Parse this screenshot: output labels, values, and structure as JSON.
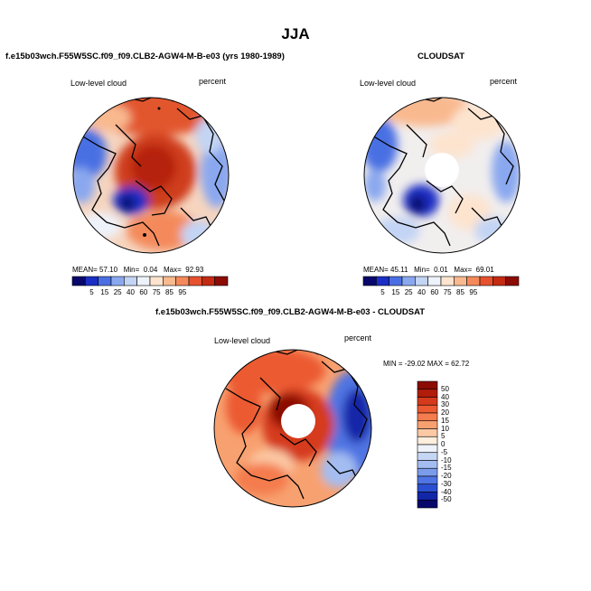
{
  "figure": {
    "season_title": "JJA"
  },
  "panel_model": {
    "title": "f.e15b03wch.F55W5SC.f09_f09.CLB2-AGW4-M-B-e03 (yrs 1980-1989)",
    "variable": "Low-level cloud",
    "units": "percent",
    "stats": {
      "mean_label": "MEAN=",
      "mean_value": "57.10",
      "min_label": "Min=",
      "min_value": "0.04",
      "max_label": "Max=",
      "max_value": "92.93"
    }
  },
  "panel_obs": {
    "title": "CLOUDSAT",
    "variable": "Low-level cloud",
    "units": "percent",
    "stats": {
      "mean_label": "MEAN=",
      "mean_value": "45.11",
      "min_label": "Min=",
      "min_value": "0.01",
      "max_label": "Max=",
      "max_value": "69.01"
    }
  },
  "panel_diff": {
    "title": "f.e15b03wch.F55W5SC.f09_f09.CLB2-AGW4-M-B-e03 - CLOUDSAT",
    "variable": "Low-level cloud",
    "units": "percent",
    "minmax_text": "MIN = -29.02 MAX =  62.72"
  },
  "colorbar_abs": {
    "labels": [
      "5",
      "15",
      "25",
      "40",
      "60",
      "75",
      "85",
      "95"
    ],
    "colors": [
      "#08076b",
      "#1b2fc4",
      "#4a6fe3",
      "#8aa8ef",
      "#c3d4f4",
      "#eef2fa",
      "#fde4cf",
      "#f9b98f",
      "#f48a5c",
      "#e6522e",
      "#c42b12",
      "#8c0b03"
    ]
  },
  "colorbar_diff": {
    "labels": [
      "50",
      "40",
      "30",
      "20",
      "15",
      "10",
      "5",
      "0",
      "-5",
      "-10",
      "-15",
      "-20",
      "-30",
      "-40",
      "-50"
    ],
    "colors": [
      "#8c0b03",
      "#b21c0a",
      "#d53a1d",
      "#ec5a32",
      "#f47c4e",
      "#f8a170",
      "#fcc9a4",
      "#fdeedd",
      "#eef2fa",
      "#c6d6f5",
      "#a4bdf1",
      "#7b9ceb",
      "#4f74e3",
      "#2a4fd1",
      "#1226a8",
      "#08076b"
    ]
  },
  "colors": {
    "blue_dark": "#08076b",
    "red_dark": "#8c0b03",
    "neutral": "#f3f1ee"
  }
}
